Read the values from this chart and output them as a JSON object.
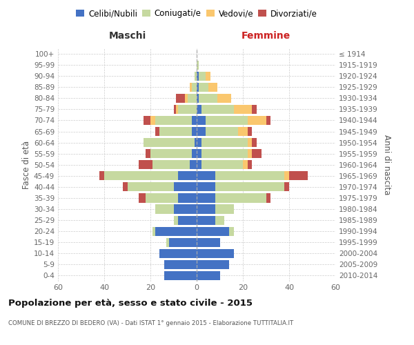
{
  "age_groups": [
    "0-4",
    "5-9",
    "10-14",
    "15-19",
    "20-24",
    "25-29",
    "30-34",
    "35-39",
    "40-44",
    "45-49",
    "50-54",
    "55-59",
    "60-64",
    "65-69",
    "70-74",
    "75-79",
    "80-84",
    "85-89",
    "90-94",
    "95-99",
    "100+"
  ],
  "birth_years": [
    "2010-2014",
    "2005-2009",
    "2000-2004",
    "1995-1999",
    "1990-1994",
    "1985-1989",
    "1980-1984",
    "1975-1979",
    "1970-1974",
    "1965-1969",
    "1960-1964",
    "1955-1959",
    "1950-1954",
    "1945-1949",
    "1940-1944",
    "1935-1939",
    "1930-1934",
    "1925-1929",
    "1920-1924",
    "1915-1919",
    "≤ 1914"
  ],
  "male": {
    "celibe": [
      14,
      14,
      16,
      12,
      18,
      8,
      10,
      8,
      10,
      8,
      3,
      2,
      1,
      2,
      2,
      0,
      0,
      0,
      0,
      0,
      0
    ],
    "coniugato": [
      0,
      0,
      0,
      1,
      1,
      2,
      8,
      14,
      20,
      32,
      16,
      18,
      22,
      14,
      16,
      8,
      4,
      2,
      1,
      0,
      0
    ],
    "vedovo": [
      0,
      0,
      0,
      0,
      0,
      0,
      0,
      0,
      0,
      0,
      0,
      0,
      0,
      0,
      2,
      1,
      1,
      1,
      0,
      0,
      0
    ],
    "divorziato": [
      0,
      0,
      0,
      0,
      0,
      0,
      0,
      3,
      2,
      2,
      6,
      2,
      0,
      2,
      3,
      1,
      4,
      0,
      0,
      0,
      0
    ]
  },
  "female": {
    "celibe": [
      10,
      14,
      16,
      10,
      14,
      8,
      8,
      8,
      8,
      8,
      2,
      2,
      2,
      4,
      4,
      2,
      1,
      1,
      1,
      0,
      0
    ],
    "coniugato": [
      0,
      0,
      0,
      0,
      2,
      4,
      8,
      22,
      30,
      30,
      18,
      20,
      20,
      14,
      18,
      14,
      8,
      4,
      3,
      1,
      0
    ],
    "vedovo": [
      0,
      0,
      0,
      0,
      0,
      0,
      0,
      0,
      0,
      2,
      2,
      2,
      2,
      4,
      8,
      8,
      6,
      4,
      2,
      0,
      0
    ],
    "divorziato": [
      0,
      0,
      0,
      0,
      0,
      0,
      0,
      2,
      2,
      8,
      2,
      4,
      2,
      2,
      2,
      2,
      0,
      0,
      0,
      0,
      0
    ]
  },
  "colors": {
    "celibe": "#4472c4",
    "coniugato": "#c6d9a0",
    "vedovo": "#fac76e",
    "divorziato": "#c0504d"
  },
  "xlim": 60,
  "title": "Popolazione per età, sesso e stato civile - 2015",
  "subtitle": "COMUNE DI BREZZO DI BEDERO (VA) - Dati ISTAT 1° gennaio 2015 - Elaborazione TUTTITALIA.IT",
  "ylabel_left": "Fasce di età",
  "ylabel_right": "Anni di nascita",
  "xlabel_left": "Maschi",
  "xlabel_right": "Femmine",
  "bg_color": "#ffffff",
  "grid_color": "#cccccc"
}
